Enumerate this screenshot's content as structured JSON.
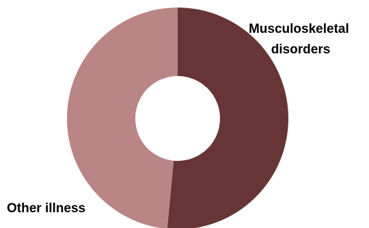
{
  "chart_data": {
    "type": "pie",
    "donut": true,
    "title": "",
    "legend": "none",
    "slices": [
      {
        "label_lines": [
          "Musculoskeletal",
          "disorders"
        ],
        "value": 51.5,
        "color": "#673535"
      },
      {
        "label_lines": [
          "Other illness"
        ],
        "value": 48.5,
        "color": "#b98585"
      }
    ]
  }
}
